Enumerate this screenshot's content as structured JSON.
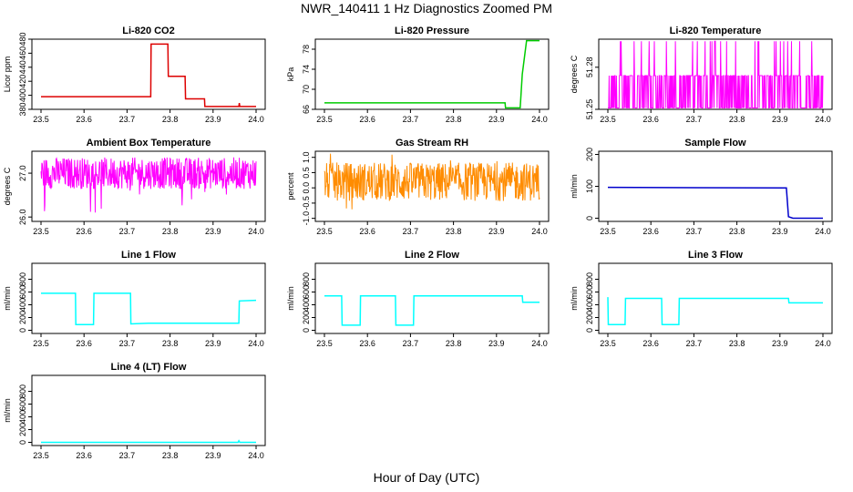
{
  "page": {
    "title": "NWR_140411  1 Hz Diagnostics Zoomed PM",
    "xlabel": "Hour of Day (UTC)"
  },
  "chart_data": [
    {
      "type": "line",
      "title": "Li-820 CO2",
      "ylabel": "Licor ppm",
      "color": "#dd0000",
      "xlim": [
        23.5,
        24.0
      ],
      "ylim": [
        380,
        480
      ],
      "xticks": [
        "23.5",
        "23.6",
        "23.7",
        "23.8",
        "23.9",
        "24.0"
      ],
      "yticks": [
        "380",
        "400",
        "420",
        "440",
        "460",
        "480"
      ],
      "series": [
        {
          "x": [
            23.5,
            23.755,
            23.756,
            23.795,
            23.796,
            23.835,
            23.836,
            23.88,
            23.881,
            23.96,
            23.961,
            23.962,
            24.0
          ],
          "y": [
            398,
            398,
            473,
            473,
            427,
            427,
            395,
            395,
            384,
            384,
            389,
            384,
            384
          ]
        }
      ]
    },
    {
      "type": "line",
      "title": "Li-820 Pressure",
      "ylabel": "kPa",
      "color": "#00cc00",
      "xlim": [
        23.5,
        24.0
      ],
      "ylim": [
        66,
        80
      ],
      "xticks": [
        "23.5",
        "23.6",
        "23.7",
        "23.8",
        "23.9",
        "24.0"
      ],
      "yticks": [
        "66",
        "70",
        "74",
        "78"
      ],
      "series": [
        {
          "x": [
            23.5,
            23.92,
            23.921,
            23.955,
            23.96,
            23.97,
            24.0
          ],
          "y": [
            67.3,
            67.3,
            66.3,
            66.3,
            73,
            79.7,
            79.7
          ]
        }
      ]
    },
    {
      "type": "line",
      "title": "Li-820 Temperature",
      "ylabel": "degrees C",
      "color": "#ff00ff",
      "xlim": [
        23.5,
        24.0
      ],
      "ylim": [
        51.25,
        51.3
      ],
      "xticks": [
        "23.5",
        "23.6",
        "23.7",
        "23.8",
        "23.9",
        "24.0"
      ],
      "yticks": [
        "51.25",
        "51.28"
      ],
      "note_style": "noisy",
      "series": [
        {
          "x": [
            23.5,
            24.0
          ],
          "y": [
            51.274,
            51.274
          ]
        }
      ]
    },
    {
      "type": "line",
      "title": "Ambient Box Temperature",
      "ylabel": "degrees C",
      "color": "#ff00ff",
      "xlim": [
        23.5,
        24.0
      ],
      "ylim": [
        25.9,
        27.5
      ],
      "xticks": [
        "23.5",
        "23.6",
        "23.7",
        "23.8",
        "23.9",
        "24.0"
      ],
      "yticks": [
        "26.0",
        "27.0"
      ],
      "note_style": "noisy",
      "series": [
        {
          "x": [
            23.5,
            24.0
          ],
          "y": [
            27.0,
            27.0
          ]
        }
      ]
    },
    {
      "type": "line",
      "title": "Gas Stream RH",
      "ylabel": "percent",
      "color": "#ff8c00",
      "xlim": [
        23.5,
        24.0
      ],
      "ylim": [
        -1.1,
        1.2
      ],
      "xticks": [
        "23.5",
        "23.6",
        "23.7",
        "23.8",
        "23.9",
        "24.0"
      ],
      "yticks": [
        "-1.0",
        "-0.5",
        "0.0",
        "0.5",
        "1.0"
      ],
      "note_style": "noisy",
      "series": [
        {
          "x": [
            23.5,
            24.0
          ],
          "y": [
            0.2,
            0.2
          ]
        }
      ]
    },
    {
      "type": "line",
      "title": "Sample Flow",
      "ylabel": "ml/min",
      "color": "#0000cc",
      "xlim": [
        23.5,
        24.0
      ],
      "ylim": [
        -10,
        210
      ],
      "xticks": [
        "23.5",
        "23.6",
        "23.7",
        "23.8",
        "23.9",
        "24.0"
      ],
      "yticks": [
        "0",
        "100",
        "200"
      ],
      "series": [
        {
          "x": [
            23.5,
            23.915,
            23.92,
            23.93,
            24.0
          ],
          "y": [
            97,
            95,
            5,
            0,
            0
          ]
        }
      ]
    },
    {
      "type": "line",
      "title": "Line 1 Flow",
      "ylabel": "ml/min",
      "color": "#00ffff",
      "xlim": [
        23.5,
        24.0
      ],
      "ylim": [
        -50,
        1050
      ],
      "xticks": [
        "23.5",
        "23.6",
        "23.7",
        "23.8",
        "23.9",
        "24.0"
      ],
      "yticks": [
        "0",
        "200",
        "400",
        "600",
        "800"
      ],
      "series": [
        {
          "x": [
            23.5,
            23.58,
            23.581,
            23.622,
            23.623,
            23.708,
            23.709,
            23.75,
            23.96,
            23.961,
            24.0
          ],
          "y": [
            580,
            580,
            90,
            90,
            580,
            580,
            100,
            110,
            110,
            460,
            470
          ]
        }
      ]
    },
    {
      "type": "line",
      "title": "Line 2 Flow",
      "ylabel": "ml/min",
      "color": "#00ffff",
      "xlim": [
        23.5,
        24.0
      ],
      "ylim": [
        -50,
        1050
      ],
      "xticks": [
        "23.5",
        "23.6",
        "23.7",
        "23.8",
        "23.9",
        "24.0"
      ],
      "yticks": [
        "0",
        "200",
        "400",
        "600",
        "800"
      ],
      "series": [
        {
          "x": [
            23.5,
            23.54,
            23.541,
            23.583,
            23.584,
            23.665,
            23.666,
            23.707,
            23.708,
            23.96,
            23.961,
            24.0
          ],
          "y": [
            540,
            540,
            80,
            80,
            540,
            540,
            80,
            80,
            540,
            540,
            440,
            440
          ]
        }
      ]
    },
    {
      "type": "line",
      "title": "Line 3 Flow",
      "ylabel": "ml/min",
      "color": "#00ffff",
      "xlim": [
        23.5,
        24.0
      ],
      "ylim": [
        -50,
        1050
      ],
      "xticks": [
        "23.5",
        "23.6",
        "23.7",
        "23.8",
        "23.9",
        "24.0"
      ],
      "yticks": [
        "0",
        "200",
        "400",
        "600",
        "800"
      ],
      "series": [
        {
          "x": [
            23.5,
            23.501,
            23.54,
            23.541,
            23.625,
            23.626,
            23.665,
            23.666,
            23.92,
            23.921,
            24.0
          ],
          "y": [
            520,
            90,
            90,
            500,
            500,
            90,
            90,
            500,
            500,
            430,
            430
          ]
        }
      ]
    },
    {
      "type": "line",
      "title": "Line 4 (LT) Flow",
      "ylabel": "ml/min",
      "color": "#00ffff",
      "xlim": [
        23.5,
        24.0
      ],
      "ylim": [
        -50,
        1050
      ],
      "xticks": [
        "23.5",
        "23.6",
        "23.7",
        "23.8",
        "23.9",
        "24.0"
      ],
      "yticks": [
        "0",
        "200",
        "400",
        "600",
        "800"
      ],
      "series": [
        {
          "x": [
            23.5,
            23.958,
            23.96,
            23.962,
            24.0
          ],
          "y": [
            0,
            0,
            25,
            0,
            0
          ]
        }
      ]
    }
  ]
}
